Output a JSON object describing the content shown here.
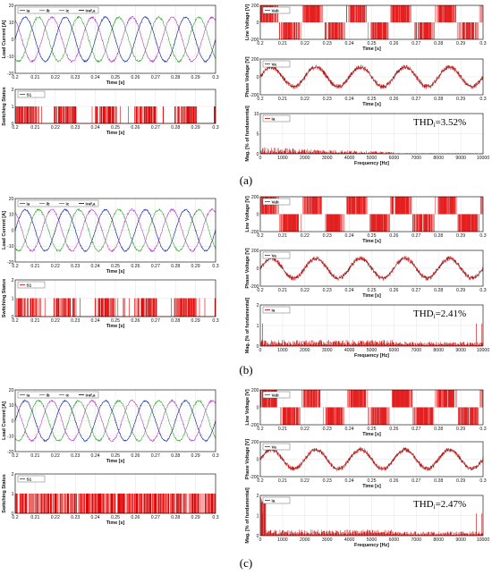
{
  "colors": {
    "ia": "#1f3fd6",
    "ib": "#2aa02a",
    "ic": "#b030c0",
    "iref": "#000000",
    "switch": "#e00000",
    "signal": "#cc0000",
    "fundamental": "#222222"
  },
  "chart_data": [
    {
      "panel": "(a)",
      "thd_text": "THD",
      "thd_sub": "i",
      "thd_value": "=3.52%",
      "caption": "(a)",
      "load_current": {
        "type": "line",
        "xlabel": "Time [s]",
        "ylabel": "Load Current [A]",
        "xlim": [
          0.2,
          0.3
        ],
        "ylim": [
          -20,
          20
        ],
        "yticks": [
          -20,
          -10,
          0,
          10,
          20
        ],
        "xticks": [
          "0.2",
          "0.21",
          "0.22",
          "0.23",
          "0.24",
          "0.25",
          "0.26",
          "0.27",
          "0.28",
          "0.29",
          "0.3"
        ],
        "amplitude": 13,
        "frequency_hz": 50,
        "grid": true,
        "series": [
          {
            "name": "ia"
          },
          {
            "name": "ib"
          },
          {
            "name": "ic"
          },
          {
            "name": "iref,a"
          }
        ]
      },
      "switching": {
        "type": "line",
        "xlabel": "Time [s]",
        "ylabel": "Switching Status",
        "xlim": [
          0.2,
          0.3
        ],
        "ylim": [
          0,
          2
        ],
        "yticks": [
          0,
          1,
          2
        ],
        "xticks": [
          "0.2",
          "0.21",
          "0.22",
          "0.23",
          "0.24",
          "0.25",
          "0.26",
          "0.27",
          "0.28",
          "0.29",
          "0.3"
        ],
        "series": [
          {
            "name": "S1"
          }
        ],
        "grid": true
      },
      "line_voltage": {
        "type": "line",
        "xlabel": "Time [s]",
        "ylabel": "Line Voltage [V]",
        "xlim": [
          0.2,
          0.3
        ],
        "ylim": [
          -200,
          200
        ],
        "yticks": [
          -200,
          0,
          200
        ],
        "xticks": [
          "0.2",
          "0.21",
          "0.22",
          "0.23",
          "0.24",
          "0.25",
          "0.26",
          "0.27",
          "0.28",
          "0.29",
          "0.3"
        ],
        "series": [
          {
            "name": "Vab"
          }
        ],
        "level": 200,
        "grid": true
      },
      "phase_voltage": {
        "type": "line",
        "xlabel": "Time [s]",
        "ylabel": "Phase Voltage [V]",
        "xlim": [
          0.2,
          0.3
        ],
        "ylim": [
          -200,
          200
        ],
        "yticks": [
          -200,
          0,
          200
        ],
        "xticks": [
          "0.2",
          "0.21",
          "0.22",
          "0.23",
          "0.24",
          "0.25",
          "0.26",
          "0.27",
          "0.28",
          "0.29",
          "0.3"
        ],
        "series": [
          {
            "name": "Va"
          }
        ],
        "amplitude": 110,
        "grid": true
      },
      "spectrum": {
        "type": "bar",
        "xlabel": "Frequency [Hz]",
        "ylabel": "Mag. [% of fundamental]",
        "xlim": [
          0,
          10000
        ],
        "ylim": [
          0,
          10
        ],
        "yticks": [
          0,
          5,
          10
        ],
        "xticks": [
          "0",
          "1000",
          "2000",
          "3000",
          "4000",
          "5000",
          "6000",
          "7000",
          "8000",
          "9000",
          "10000"
        ],
        "series": [
          {
            "name": "ia"
          }
        ],
        "grid": true
      }
    },
    {
      "panel": "(b)",
      "thd_text": "THD",
      "thd_sub": "i",
      "thd_value": "=2.41%",
      "caption": "(b)",
      "load_current": {
        "type": "line",
        "xlabel": "Time [s]",
        "ylabel": "Load Current [A]",
        "xlim": [
          0.2,
          0.3
        ],
        "ylim": [
          -20,
          20
        ],
        "yticks": [
          -20,
          -10,
          0,
          10,
          20
        ],
        "xticks": [
          "0.2",
          "0.21",
          "0.22",
          "0.23",
          "0.24",
          "0.25",
          "0.26",
          "0.27",
          "0.28",
          "0.29",
          "0.3"
        ],
        "amplitude": 13,
        "frequency_hz": 50,
        "grid": true,
        "series": [
          {
            "name": "ia"
          },
          {
            "name": "ib"
          },
          {
            "name": "ic"
          },
          {
            "name": "iref,a"
          }
        ]
      },
      "switching": {
        "type": "line",
        "xlabel": "Time [s]",
        "ylabel": "Switching Status",
        "xlim": [
          0.2,
          0.3
        ],
        "ylim": [
          0,
          2
        ],
        "yticks": [
          0,
          1,
          2
        ],
        "xticks": [
          "0.2",
          "0.21",
          "0.22",
          "0.23",
          "0.24",
          "0.25",
          "0.26",
          "0.27",
          "0.28",
          "0.29",
          "0.3"
        ],
        "series": [
          {
            "name": "S1"
          }
        ],
        "grid": true
      },
      "line_voltage": {
        "type": "line",
        "xlabel": "Time [s]",
        "ylabel": "Line Voltage [V]",
        "xlim": [
          0.2,
          0.3
        ],
        "ylim": [
          -200,
          200
        ],
        "yticks": [
          -200,
          0,
          200
        ],
        "xticks": [
          "0.2",
          "0.21",
          "0.22",
          "0.23",
          "0.24",
          "0.25",
          "0.26",
          "0.27",
          "0.28",
          "0.29",
          "0.3"
        ],
        "series": [
          {
            "name": "Vab"
          }
        ],
        "level": 200,
        "grid": true
      },
      "phase_voltage": {
        "type": "line",
        "xlabel": "Time [s]",
        "ylabel": "Phase Voltage [V]",
        "xlim": [
          0.2,
          0.3
        ],
        "ylim": [
          -200,
          200
        ],
        "yticks": [
          -200,
          0,
          200
        ],
        "xticks": [
          "0.2",
          "0.21",
          "0.22",
          "0.23",
          "0.24",
          "0.25",
          "0.26",
          "0.27",
          "0.28",
          "0.29",
          "0.3"
        ],
        "series": [
          {
            "name": "Va"
          }
        ],
        "amplitude": 110,
        "grid": true
      },
      "spectrum": {
        "type": "bar",
        "xlabel": "Frequency [Hz]",
        "ylabel": "Mag. [% of fundamental]",
        "xlim": [
          0,
          10000
        ],
        "ylim": [
          0,
          2
        ],
        "yticks": [
          0,
          1,
          2
        ],
        "xticks": [
          "0",
          "1000",
          "2000",
          "3000",
          "4000",
          "5000",
          "6000",
          "7000",
          "8000",
          "9000",
          "10000"
        ],
        "series": [
          {
            "name": "ia"
          }
        ],
        "grid": true
      }
    },
    {
      "panel": "(c)",
      "thd_text": "THD",
      "thd_sub": "i",
      "thd_value": "=2.47%",
      "caption": "(c)",
      "load_current": {
        "type": "line",
        "xlabel": "Time [s]",
        "ylabel": "Load Current [A]",
        "xlim": [
          0.2,
          0.3
        ],
        "ylim": [
          -20,
          20
        ],
        "yticks": [
          -20,
          -10,
          0,
          10,
          20
        ],
        "xticks": [
          "0.2",
          "0.21",
          "0.22",
          "0.23",
          "0.24",
          "0.25",
          "0.26",
          "0.27",
          "0.28",
          "0.29",
          "0.3"
        ],
        "amplitude": 13,
        "frequency_hz": 50,
        "grid": true,
        "series": [
          {
            "name": "ia"
          },
          {
            "name": "ib"
          },
          {
            "name": "ic"
          },
          {
            "name": "iref,a"
          }
        ]
      },
      "switching": {
        "type": "line",
        "xlabel": "Time [s]",
        "ylabel": "Switching Status",
        "xlim": [
          0.2,
          0.3
        ],
        "ylim": [
          0,
          2
        ],
        "yticks": [
          0,
          1,
          2
        ],
        "xticks": [
          "0.2",
          "0.21",
          "0.22",
          "0.23",
          "0.24",
          "0.25",
          "0.26",
          "0.27",
          "0.28",
          "0.29",
          "0.3"
        ],
        "series": [
          {
            "name": "S1"
          }
        ],
        "grid": true
      },
      "line_voltage": {
        "type": "line",
        "xlabel": "Time [s]",
        "ylabel": "Line Voltage [V]",
        "xlim": [
          0.2,
          0.3
        ],
        "ylim": [
          -200,
          200
        ],
        "yticks": [
          -200,
          0,
          200
        ],
        "xticks": [
          "0.2",
          "0.21",
          "0.22",
          "0.23",
          "0.24",
          "0.25",
          "0.26",
          "0.27",
          "0.28",
          "0.29",
          "0.3"
        ],
        "series": [
          {
            "name": "Vab"
          }
        ],
        "level": 200,
        "grid": true
      },
      "phase_voltage": {
        "type": "line",
        "xlabel": "Time [s]",
        "ylabel": "Phase Voltage [V]",
        "xlim": [
          0.2,
          0.3
        ],
        "ylim": [
          -200,
          200
        ],
        "yticks": [
          -200,
          0,
          200
        ],
        "xticks": [
          "0.2",
          "0.21",
          "0.22",
          "0.23",
          "0.24",
          "0.25",
          "0.26",
          "0.27",
          "0.28",
          "0.29",
          "0.3"
        ],
        "series": [
          {
            "name": "Va"
          }
        ],
        "amplitude": 110,
        "grid": true
      },
      "spectrum": {
        "type": "bar",
        "xlabel": "Frequency [Hz]",
        "ylabel": "Mag. [% of fundamental]",
        "xlim": [
          0,
          10000
        ],
        "ylim": [
          0,
          2
        ],
        "yticks": [
          0,
          1,
          2
        ],
        "xticks": [
          "0",
          "1000",
          "2000",
          "3000",
          "4000",
          "5000",
          "6000",
          "7000",
          "8000",
          "9000",
          "10000"
        ],
        "series": [
          {
            "name": "ia"
          }
        ],
        "grid": true
      }
    }
  ]
}
